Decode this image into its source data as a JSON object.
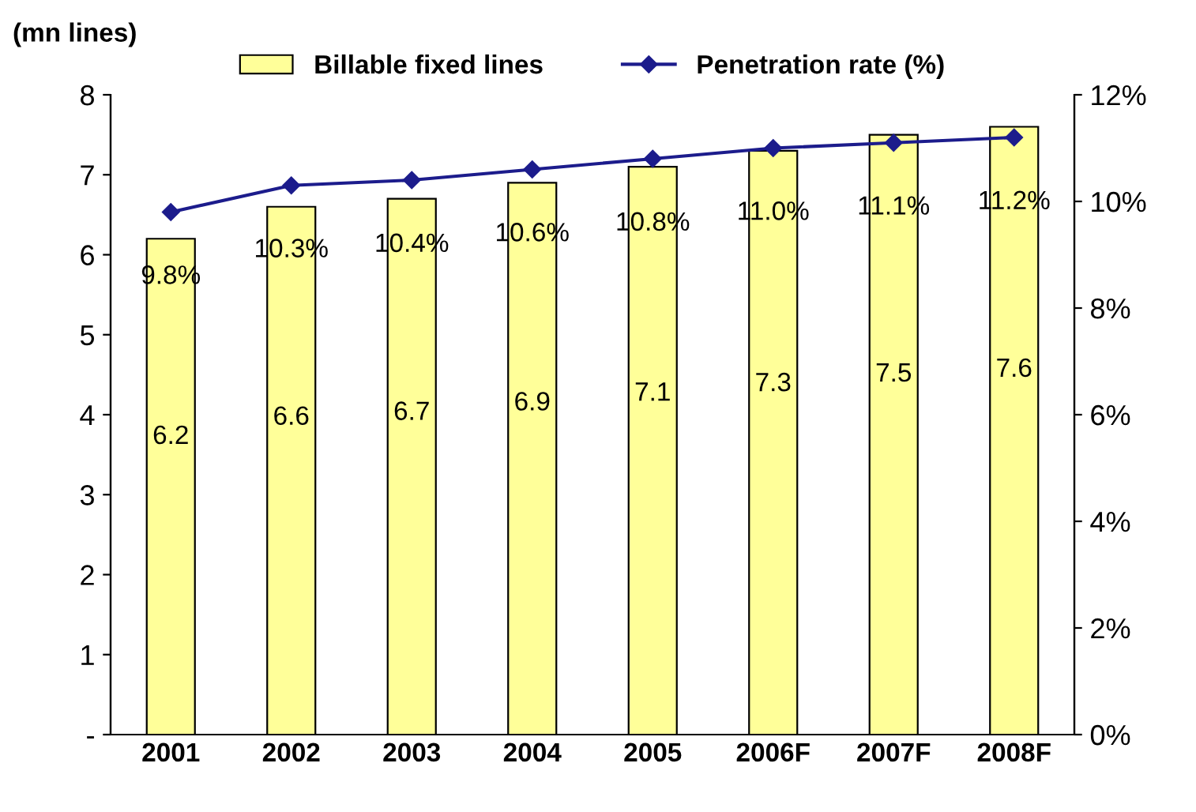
{
  "chart_data": {
    "type": "bar",
    "ylabel": "(mn lines)",
    "categories": [
      "2001",
      "2002",
      "2003",
      "2004",
      "2005",
      "2006F",
      "2007F",
      "2008F"
    ],
    "series": [
      {
        "name": "Billable fixed lines",
        "color": "#ffff99",
        "values": [
          6.2,
          6.6,
          6.7,
          6.9,
          7.1,
          7.3,
          7.5,
          7.6
        ]
      },
      {
        "name": "Penetration rate (%)",
        "type": "line",
        "axis": "y2",
        "color": "#1c1c8c",
        "marker": "diamond",
        "values": [
          9.8,
          10.3,
          10.4,
          10.6,
          10.8,
          11.0,
          11.1,
          11.2
        ],
        "value_labels": [
          "9.8%",
          "10.3%",
          "10.4%",
          "10.6%",
          "10.8%",
          "11.0%",
          "11.1%",
          "11.2%"
        ]
      }
    ],
    "ylim": [
      0,
      8
    ],
    "yticks": [
      {
        "value": 0,
        "label": "-"
      },
      1,
      2,
      3,
      4,
      5,
      6,
      7,
      8
    ],
    "y2lim": [
      0,
      12
    ],
    "y2ticks": [
      {
        "value": 0,
        "label": "0%"
      },
      {
        "value": 2,
        "label": "2%"
      },
      {
        "value": 4,
        "label": "4%"
      },
      {
        "value": 6,
        "label": "6%"
      },
      {
        "value": 8,
        "label": "8%"
      },
      {
        "value": 10,
        "label": "10%"
      },
      {
        "value": 12,
        "label": "12%"
      }
    ],
    "data_labels": true,
    "legend": "top",
    "grid": false
  }
}
